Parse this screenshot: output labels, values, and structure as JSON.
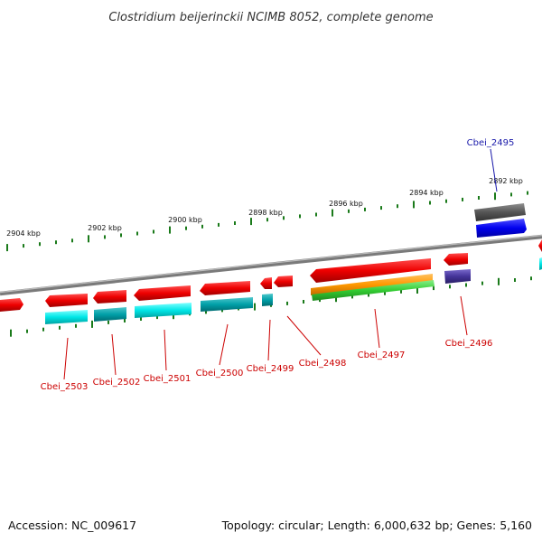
{
  "title": "Clostridium beijerinckii NCIMB 8052, complete genome",
  "footer": {
    "accession": "Accession: NC_009617",
    "summary": "Topology: circular; Length: 6,000,632 bp; Genes: 5,160"
  },
  "scale_labels": [
    "2892 kbp",
    "2894 kbp",
    "2896 kbp",
    "2898 kbp",
    "2900 kbp",
    "2902 kbp",
    "2904 kbp"
  ],
  "gene_labels": [
    {
      "text": "Cbei_2495",
      "color": "#1a1aaa"
    },
    {
      "text": "Cbei_2496",
      "color": "#cc0000"
    },
    {
      "text": "Cbei_2497",
      "color": "#cc0000"
    },
    {
      "text": "Cbei_2498",
      "color": "#cc0000"
    },
    {
      "text": "Cbei_2499",
      "color": "#cc0000"
    },
    {
      "text": "Cbei_2500",
      "color": "#cc0000"
    },
    {
      "text": "Cbei_2501",
      "color": "#cc0000"
    },
    {
      "text": "Cbei_2502",
      "color": "#cc0000"
    },
    {
      "text": "Cbei_2503",
      "color": "#cc0000"
    }
  ],
  "colors": {
    "cds": "#ee0000",
    "cog_cyan": "#00dddd",
    "cog_teal": "#00a0a8",
    "cog_blue": "#0000ee",
    "cog_gray": "#555555",
    "cog_orange": "#ff9900",
    "cog_green": "#33cc33",
    "cog_purple": "#443399",
    "backbone": "#808080",
    "ticks": "#1a7a1a"
  }
}
